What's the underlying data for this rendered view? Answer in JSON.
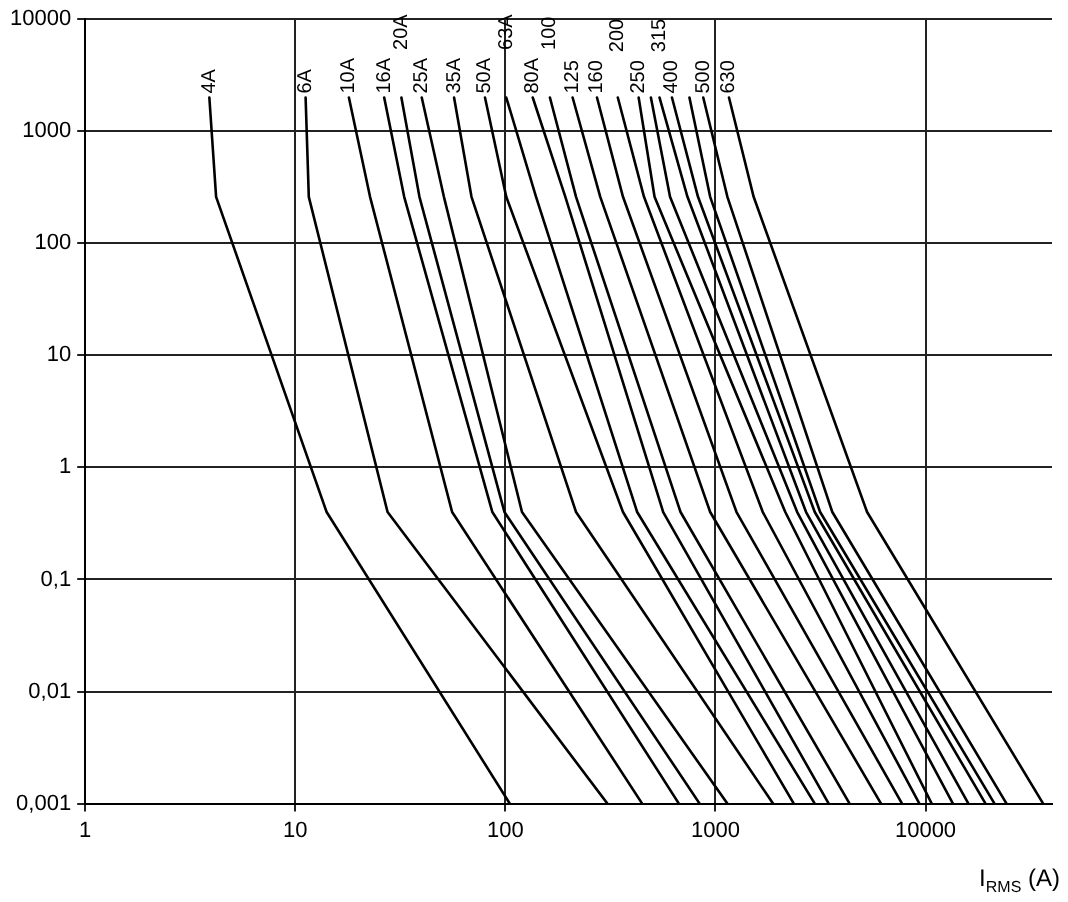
{
  "chart_data": {
    "type": "line",
    "xlabel": "I$_{RMS}$ (A)",
    "xlim": [
      1,
      40000
    ],
    "xticks": [
      1,
      10,
      100,
      1000,
      10000
    ],
    "ylim": [
      0.001,
      10000
    ],
    "yticks": [
      {
        "value": 0.001,
        "label": "0,001"
      },
      {
        "value": 0.01,
        "label": "0,01"
      },
      {
        "value": 0.1,
        "label": "0,1"
      },
      1,
      10,
      100,
      1000,
      10000
    ],
    "log": "xy",
    "grid": true,
    "legend": false,
    "marker": "none",
    "line_style": "solid",
    "series": [
      {
        "name": "4A",
        "color": "#000000",
        "x": [
          3.9,
          4.2,
          14.1,
          105
        ],
        "values": [
          2000,
          260,
          0.4,
          0.001
        ]
      },
      {
        "name": "6A",
        "color": "#000000",
        "x": [
          11.2,
          11.6,
          27.5,
          306
        ],
        "values": [
          2000,
          260,
          0.4,
          0.001
        ]
      },
      {
        "name": "10A",
        "color": "#000000",
        "x": [
          18,
          22.7,
          55.8,
          448
        ],
        "values": [
          2000,
          260,
          0.4,
          0.001
        ]
      },
      {
        "name": "16A",
        "color": "#000000",
        "x": [
          26.5,
          33,
          86.7,
          670
        ],
        "values": [
          2000,
          260,
          0.4,
          0.001
        ]
      },
      {
        "name": "20A",
        "color": "#000000",
        "x": [
          32,
          39,
          99,
          841
        ],
        "values": [
          2000,
          260,
          0.4,
          0.001
        ]
      },
      {
        "name": "25A",
        "color": "#000000",
        "x": [
          40,
          51,
          120,
          1140
        ],
        "values": [
          2000,
          260,
          0.4,
          0.001
        ]
      },
      {
        "name": "35A",
        "color": "#000000",
        "x": [
          57,
          69,
          217,
          1880
        ],
        "values": [
          2000,
          260,
          0.4,
          0.001
        ]
      },
      {
        "name": "50A",
        "color": "#000000",
        "x": [
          80,
          101,
          363,
          2360
        ],
        "values": [
          2000,
          260,
          0.4,
          0.001
        ]
      },
      {
        "name": "63A",
        "color": "#000000",
        "x": [
          101,
          140,
          424,
          2970
        ],
        "values": [
          2000,
          260,
          0.4,
          0.001
        ]
      },
      {
        "name": "80A",
        "color": "#000000",
        "x": [
          135,
          193,
          564,
          3460
        ],
        "values": [
          2000,
          260,
          0.4,
          0.001
        ]
      },
      {
        "name": "100",
        "color": "#000000",
        "x": [
          163,
          217,
          682,
          4350
        ],
        "values": [
          2000,
          260,
          0.4,
          0.001
        ]
      },
      {
        "name": "125",
        "color": "#000000",
        "x": [
          209,
          283,
          944,
          6140
        ],
        "values": [
          2000,
          260,
          0.4,
          0.001
        ]
      },
      {
        "name": "160",
        "color": "#000000",
        "x": [
          273,
          363,
          1260,
          7730
        ],
        "values": [
          2000,
          260,
          0.4,
          0.001
        ]
      },
      {
        "name": "200",
        "color": "#000000",
        "x": [
          343,
          457,
          1680,
          9350
        ],
        "values": [
          2000,
          260,
          0.4,
          0.001
        ]
      },
      {
        "name": "250",
        "color": "#000000",
        "x": [
          431,
          513,
          2150,
          10700
        ],
        "values": [
          2000,
          260,
          0.4,
          0.001
        ]
      },
      {
        "color": "#000000",
        "x": [
          493,
          608,
          2450,
          13500
        ],
        "values": [
          2000,
          260,
          0.4,
          0.001
        ]
      },
      {
        "name": "315",
        "color": "#000000",
        "x": [
          542,
          736,
          2700,
          16000
        ],
        "values": [
          2000,
          260,
          0.4,
          0.001
        ]
      },
      {
        "name": "400",
        "color": "#000000",
        "x": [
          621,
          826,
          2970,
          19300
        ],
        "values": [
          2000,
          260,
          0.4,
          0.001
        ]
      },
      {
        "color": "#000000",
        "x": [
          752,
          944,
          3150,
          21300
        ],
        "values": [
          2000,
          260,
          0.4,
          0.001
        ]
      },
      {
        "name": "500",
        "color": "#000000",
        "x": [
          875,
          1140,
          3600,
          24300
        ],
        "values": [
          2000,
          260,
          0.4,
          0.001
        ]
      },
      {
        "name": "630",
        "color": "#000000",
        "x": [
          1160,
          1520,
          5270,
          36300
        ],
        "values": [
          2000,
          260,
          0.4,
          0.001
        ]
      }
    ]
  }
}
